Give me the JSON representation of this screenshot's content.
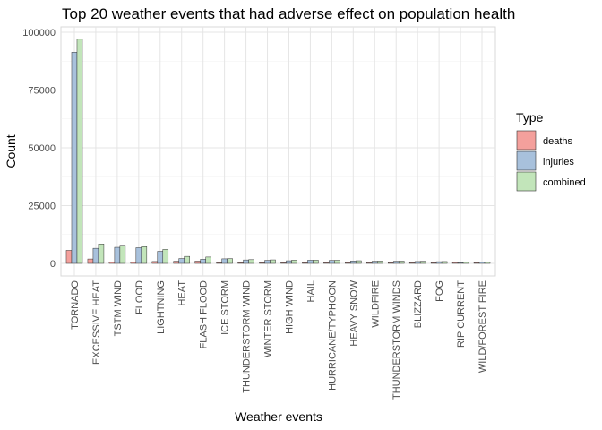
{
  "chart_data": {
    "type": "bar",
    "title": "Top 20 weather events that had adverse effect on population health",
    "xlabel": "Weather events",
    "ylabel": "Count",
    "ylim": [
      0,
      100000
    ],
    "yticks": [
      0,
      25000,
      50000,
      75000,
      100000
    ],
    "grid": true,
    "legend": {
      "title": "Type",
      "position": "right"
    },
    "categories": [
      "TORNADO",
      "EXCESSIVE HEAT",
      "TSTM WIND",
      "FLOOD",
      "LIGHTNING",
      "HEAT",
      "FLASH FLOOD",
      "ICE STORM",
      "THUNDERSTORM WIND",
      "WINTER STORM",
      "HIGH WIND",
      "HAIL",
      "HURRICANE/TYPHOON",
      "HEAVY SNOW",
      "WILDFIRE",
      "THUNDERSTORM WINDS",
      "BLIZZARD",
      "FOG",
      "RIP CURRENT",
      "WILD/FOREST FIRE"
    ],
    "series": [
      {
        "name": "deaths",
        "color": "#f4a09c",
        "values": [
          5633,
          1903,
          504,
          470,
          816,
          937,
          978,
          89,
          133,
          206,
          248,
          15,
          64,
          127,
          75,
          64,
          101,
          62,
          368,
          12
        ]
      },
      {
        "name": "injuries",
        "color": "#a8c1dc",
        "values": [
          91346,
          6525,
          6957,
          6789,
          5230,
          2100,
          1777,
          1975,
          1488,
          1321,
          1137,
          1361,
          1275,
          1021,
          911,
          908,
          805,
          734,
          232,
          545
        ]
      },
      {
        "name": "combined",
        "color": "#c2e5ba",
        "values": [
          96979,
          8428,
          7461,
          7259,
          6046,
          3037,
          2755,
          2064,
          1621,
          1527,
          1385,
          1376,
          1339,
          1148,
          986,
          972,
          906,
          796,
          600,
          557
        ]
      }
    ]
  }
}
